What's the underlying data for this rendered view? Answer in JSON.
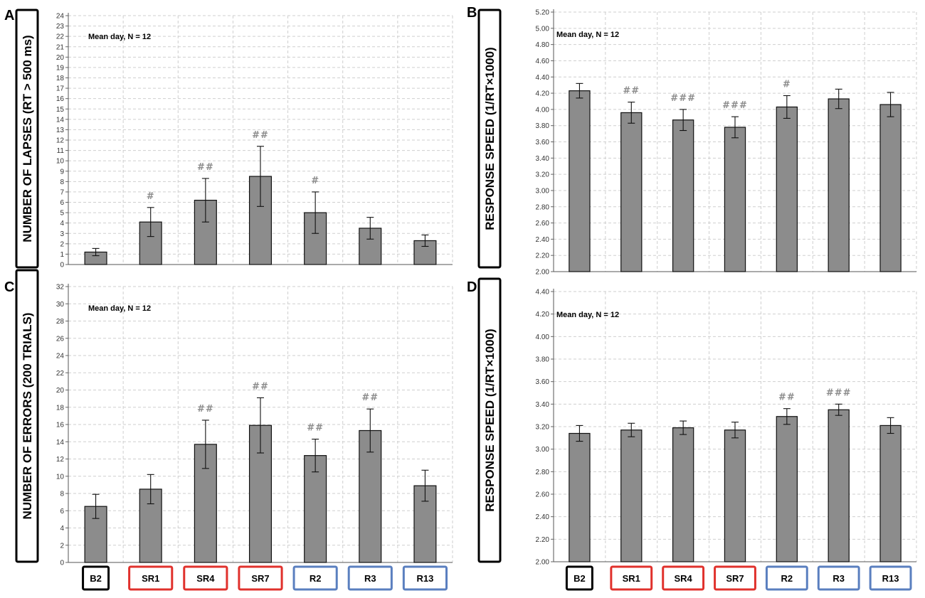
{
  "chart_data": [
    {
      "panel": "A",
      "type": "bar",
      "ylabel": "NUMBER OF LAPSES (RT > 500 ms)",
      "annotation": "Mean day, N = 12",
      "ylim": [
        0,
        24
      ],
      "yticks": [
        0,
        1,
        2,
        3,
        4,
        5,
        6,
        7,
        8,
        9,
        10,
        11,
        12,
        13,
        14,
        15,
        16,
        17,
        18,
        19,
        20,
        21,
        22,
        23,
        24
      ],
      "categories": [
        "B2",
        "SR1",
        "SR4",
        "SR7",
        "R2",
        "R3",
        "R13"
      ],
      "values": [
        1.2,
        4.1,
        6.2,
        8.5,
        5.0,
        3.5,
        2.3
      ],
      "errors": [
        0.35,
        1.4,
        2.1,
        2.9,
        2.0,
        1.05,
        0.55
      ],
      "significance": [
        "",
        "#",
        "##",
        "##",
        "#",
        "",
        ""
      ]
    },
    {
      "panel": "B",
      "type": "bar",
      "ylabel": "RESPONSE SPEED (1/RT×1000)",
      "annotation": "Mean day, N = 12",
      "ylim": [
        2.0,
        5.2
      ],
      "yticks": [
        "2.00",
        "2.20",
        "2.40",
        "2.60",
        "2.80",
        "3.00",
        "3.20",
        "3.40",
        "3.60",
        "3.80",
        "4.00",
        "4.20",
        "4.40",
        "4.60",
        "4.80",
        "5.00",
        "5.20"
      ],
      "categories": [
        "B2",
        "SR1",
        "SR4",
        "SR7",
        "R2",
        "R3",
        "R13"
      ],
      "values": [
        4.23,
        3.96,
        3.87,
        3.78,
        4.03,
        4.13,
        4.06
      ],
      "errors": [
        0.09,
        0.13,
        0.13,
        0.13,
        0.14,
        0.12,
        0.15
      ],
      "significance": [
        "",
        "##",
        "###",
        "###",
        "#",
        "",
        ""
      ]
    },
    {
      "panel": "C",
      "type": "bar",
      "ylabel": "NUMBER OF ERRORS (200 TRIALS)",
      "annotation": "Mean day, N = 12",
      "ylim": [
        0,
        32
      ],
      "yticks": [
        0,
        2,
        4,
        6,
        8,
        10,
        12,
        14,
        16,
        18,
        20,
        22,
        24,
        26,
        28,
        30,
        32
      ],
      "categories": [
        "B2",
        "SR1",
        "SR4",
        "SR7",
        "R2",
        "R3",
        "R13"
      ],
      "values": [
        6.5,
        8.5,
        13.7,
        15.9,
        12.4,
        15.3,
        8.9
      ],
      "errors": [
        1.4,
        1.7,
        2.8,
        3.2,
        1.9,
        2.5,
        1.8
      ],
      "significance": [
        "",
        "",
        "##",
        "##",
        "##",
        "##",
        ""
      ]
    },
    {
      "panel": "D",
      "type": "bar",
      "ylabel": "RESPONSE SPEED (1/RT×1000)",
      "annotation": "Mean day, N = 12",
      "ylim": [
        2.0,
        4.4
      ],
      "yticks": [
        "2.00",
        "2.20",
        "2.40",
        "2.60",
        "2.80",
        "3.00",
        "3.20",
        "3.40",
        "3.60",
        "3.80",
        "4.00",
        "4.20",
        "4.40"
      ],
      "categories": [
        "B2",
        "SR1",
        "SR4",
        "SR7",
        "R2",
        "R3",
        "R13"
      ],
      "values": [
        3.14,
        3.17,
        3.19,
        3.17,
        3.29,
        3.35,
        3.21
      ],
      "errors": [
        0.07,
        0.06,
        0.06,
        0.07,
        0.07,
        0.05,
        0.07
      ],
      "significance": [
        "",
        "",
        "",
        "",
        "##",
        "###",
        ""
      ]
    }
  ],
  "category_labels": [
    {
      "label": "B2",
      "group_color": "#000000"
    },
    {
      "label": "SR1",
      "group_color": "#e0312c"
    },
    {
      "label": "SR4",
      "group_color": "#e0312c"
    },
    {
      "label": "SR7",
      "group_color": "#e0312c"
    },
    {
      "label": "R2",
      "group_color": "#5a7fbf"
    },
    {
      "label": "R3",
      "group_color": "#5a7fbf"
    },
    {
      "label": "R13",
      "group_color": "#5a7fbf"
    }
  ],
  "colors": {
    "bar": "#8c8c8c",
    "bar_stroke": "#111111",
    "grid": "#cfcfcf",
    "significance": "#8c8c8c"
  }
}
